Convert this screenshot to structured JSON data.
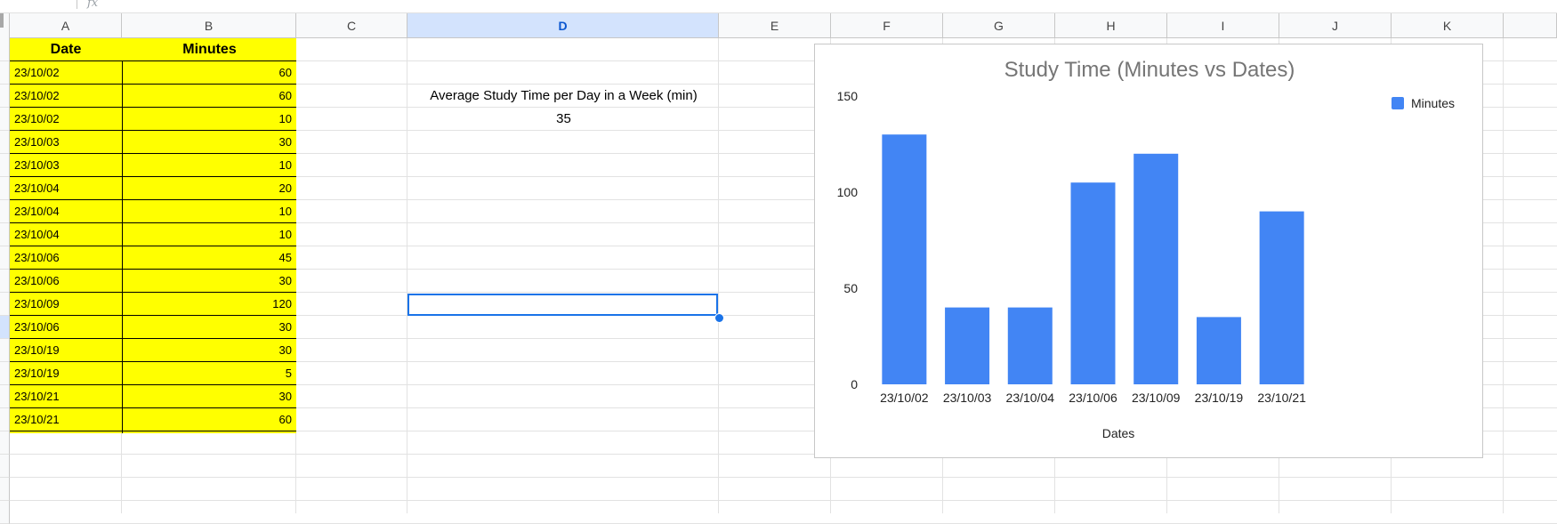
{
  "formula_bar": {
    "fx_icon": "fx-icon",
    "value": ""
  },
  "columns": [
    "A",
    "B",
    "C",
    "D",
    "E",
    "F",
    "G",
    "H",
    "I",
    "J",
    "K"
  ],
  "selected_column": "D",
  "table": {
    "headers": {
      "date": "Date",
      "minutes": "Minutes"
    },
    "rows": [
      {
        "date": "23/10/02",
        "minutes": "60"
      },
      {
        "date": "23/10/02",
        "minutes": "60"
      },
      {
        "date": "23/10/02",
        "minutes": "10"
      },
      {
        "date": "23/10/03",
        "minutes": "30"
      },
      {
        "date": "23/10/03",
        "minutes": "10"
      },
      {
        "date": "23/10/04",
        "minutes": "20"
      },
      {
        "date": "23/10/04",
        "minutes": "10"
      },
      {
        "date": "23/10/04",
        "minutes": "10"
      },
      {
        "date": "23/10/06",
        "minutes": "45"
      },
      {
        "date": "23/10/06",
        "minutes": "30"
      },
      {
        "date": "23/10/09",
        "minutes": "120"
      },
      {
        "date": "23/10/06",
        "minutes": "30"
      },
      {
        "date": "23/10/19",
        "minutes": "30"
      },
      {
        "date": "23/10/19",
        "minutes": "5"
      },
      {
        "date": "23/10/21",
        "minutes": "30"
      },
      {
        "date": "23/10/21",
        "minutes": "60"
      }
    ]
  },
  "summary": {
    "label": "Average Study Time per Day in a Week (min)",
    "value": "35"
  },
  "colors": {
    "header_bg": "#f8f9fa",
    "selected_header_bg": "#d3e3fd",
    "table_fill": "#ffff00",
    "selection": "#1a73e8",
    "bar": "#4285f4"
  },
  "chart_data": {
    "type": "bar",
    "title": "Study Time (Minutes vs Dates)",
    "xlabel": "Dates",
    "ylabel": "",
    "categories": [
      "23/10/02",
      "23/10/03",
      "23/10/04",
      "23/10/06",
      "23/10/09",
      "23/10/19",
      "23/10/21"
    ],
    "series": [
      {
        "name": "Minutes",
        "values": [
          130,
          40,
          40,
          105,
          120,
          35,
          90
        ],
        "color": "#4285f4"
      }
    ],
    "ylim": [
      0,
      150
    ],
    "yticks": [
      "0",
      "50",
      "100",
      "150"
    ],
    "legend": "top-right",
    "grid": false
  }
}
